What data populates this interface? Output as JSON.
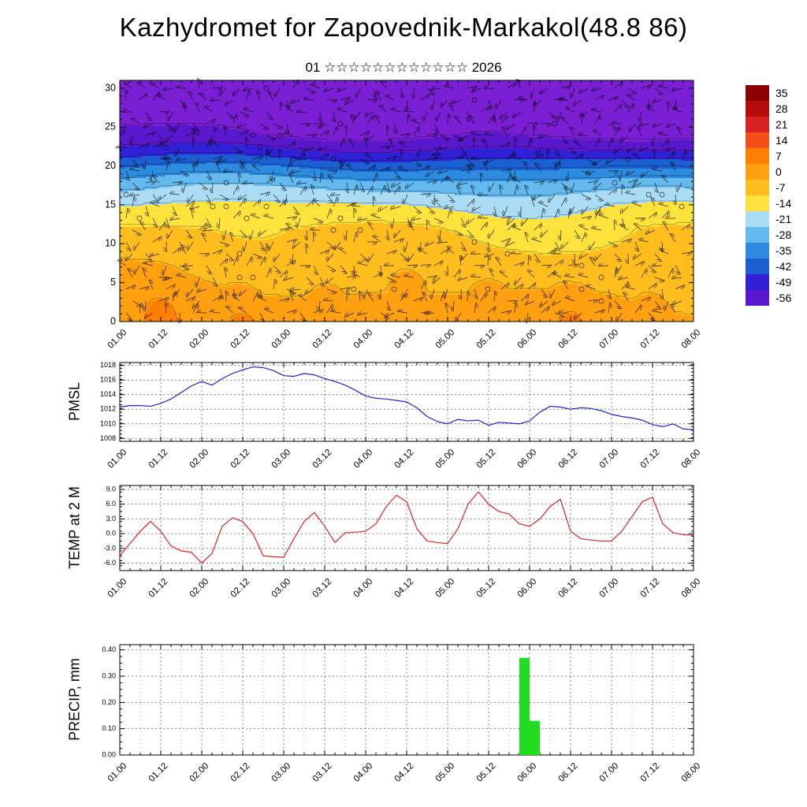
{
  "title": "Kazhydromet for Zapovednik-Markakol(48.8 86)",
  "subtitle": "01 ☆☆☆☆☆☆☆☆☆☆☆☆ 2026",
  "time_axis": {
    "labels": [
      "01.00",
      "01.12",
      "02.00",
      "02.12",
      "03.00",
      "03.12",
      "04.00",
      "04.12",
      "05.00",
      "05.12",
      "06.00",
      "06.12",
      "07.00",
      "07.12",
      "08.00"
    ],
    "major_step_hours": 12,
    "minor_step_hours": 3,
    "total_hours": 168
  },
  "chart_data": [
    {
      "id": "temperature_cross_section",
      "type": "heatmap",
      "name": "",
      "ylim": [
        0,
        31
      ],
      "yticks": [
        0,
        5,
        10,
        15,
        20,
        25,
        30
      ],
      "overlay": "wind-barbs",
      "colorbar": {
        "labels": [
          "35",
          "28",
          "21",
          "14",
          "7",
          "0",
          "-7",
          "-14",
          "-21",
          "-28",
          "-35",
          "-42",
          "-49",
          "-56"
        ],
        "colors": [
          "#8b0000",
          "#b40b0b",
          "#d92121",
          "#f25018",
          "#ff7f00",
          "#ffa011",
          "#ffbe1e",
          "#ffe23c",
          "#abdcf5",
          "#64b9ee",
          "#2e8ce0",
          "#1b5fd3",
          "#3121d6",
          "#5a18cc"
        ],
        "below_color": "#7a1fd4"
      },
      "temperature_profile": {
        "heights": [
          0,
          12,
          15,
          17.5,
          20,
          22,
          24,
          31
        ],
        "temps": [
          4,
          -7,
          -14,
          -23,
          -36,
          -48,
          -57,
          -64
        ]
      }
    },
    {
      "id": "pmsl",
      "type": "line",
      "name": "PMSL",
      "color": "#2222cc",
      "ylim": [
        1007.6,
        1018.4
      ],
      "yticks": [
        1008,
        1010,
        1012,
        1014,
        1016,
        1018
      ],
      "ytick_labels": [
        "1008",
        "1010",
        "1012",
        "1014",
        "1016",
        "1018"
      ],
      "step_hours": 3,
      "values": [
        1012.3,
        1012.5,
        1012.5,
        1012.4,
        1012.8,
        1013.4,
        1014.3,
        1015.2,
        1015.8,
        1015.3,
        1016.2,
        1016.9,
        1017.4,
        1017.8,
        1017.7,
        1017.3,
        1016.6,
        1016.5,
        1016.9,
        1016.7,
        1016.2,
        1015.8,
        1015.3,
        1014.6,
        1013.8,
        1013.5,
        1013.4,
        1013.2,
        1013.0,
        1012.2,
        1011.0,
        1010.3,
        1010.0,
        1010.6,
        1010.4,
        1010.5,
        1009.8,
        1010.2,
        1010.1,
        1010.0,
        1010.4,
        1011.6,
        1012.4,
        1012.3,
        1012.0,
        1012.2,
        1012.1,
        1011.8,
        1011.3,
        1011.0,
        1010.8,
        1010.5,
        1009.9,
        1009.6,
        1010.0,
        1009.3,
        1009.2
      ]
    },
    {
      "id": "temp_2m",
      "type": "line",
      "name": "TEMP at 2 M",
      "color": "#dd2222",
      "ylim": [
        -7.5,
        9.8
      ],
      "yticks": [
        -6,
        -3,
        0,
        3,
        6,
        9
      ],
      "ytick_labels": [
        "-6.0",
        "-3.0",
        "0.0",
        "3.0",
        "6.0",
        "9.0"
      ],
      "step_hours": 3,
      "values": [
        -4.5,
        -2.0,
        0.5,
        2.5,
        0.5,
        -2.5,
        -3.5,
        -3.8,
        -6.0,
        -4.0,
        1.5,
        3.2,
        2.5,
        0.0,
        -4.5,
        -4.7,
        -4.8,
        -1.0,
        2.5,
        4.3,
        1.5,
        -1.8,
        0.2,
        0.3,
        0.5,
        2.0,
        5.5,
        7.8,
        6.5,
        1.0,
        -1.5,
        -1.8,
        -2.0,
        1.0,
        6.0,
        8.5,
        6.0,
        4.5,
        4.0,
        2.0,
        1.5,
        3.0,
        5.5,
        7.0,
        0.5,
        -1.0,
        -1.3,
        -1.5,
        -1.5,
        0.5,
        3.5,
        6.5,
        7.4,
        2.0,
        0.2,
        -0.2,
        -0.3
      ]
    },
    {
      "id": "precip",
      "type": "bar",
      "name": "PRECIP, mm",
      "color": "#1fdd1f",
      "ylim": [
        0,
        0.42
      ],
      "yticks": [
        0,
        0.1,
        0.2,
        0.3,
        0.4
      ],
      "ytick_labels": [
        "0.00",
        "0.10",
        "0.20",
        "0.30",
        "0.40"
      ],
      "step_hours": 3,
      "values": [
        0,
        0,
        0,
        0,
        0,
        0,
        0,
        0,
        0,
        0,
        0,
        0,
        0,
        0,
        0,
        0,
        0,
        0,
        0,
        0,
        0,
        0,
        0,
        0,
        0,
        0,
        0,
        0,
        0,
        0,
        0,
        0,
        0,
        0,
        0,
        0,
        0,
        0,
        0,
        0.37,
        0.13,
        0,
        0,
        0,
        0,
        0,
        0,
        0,
        0,
        0,
        0,
        0,
        0,
        0,
        0,
        0,
        0
      ]
    }
  ]
}
